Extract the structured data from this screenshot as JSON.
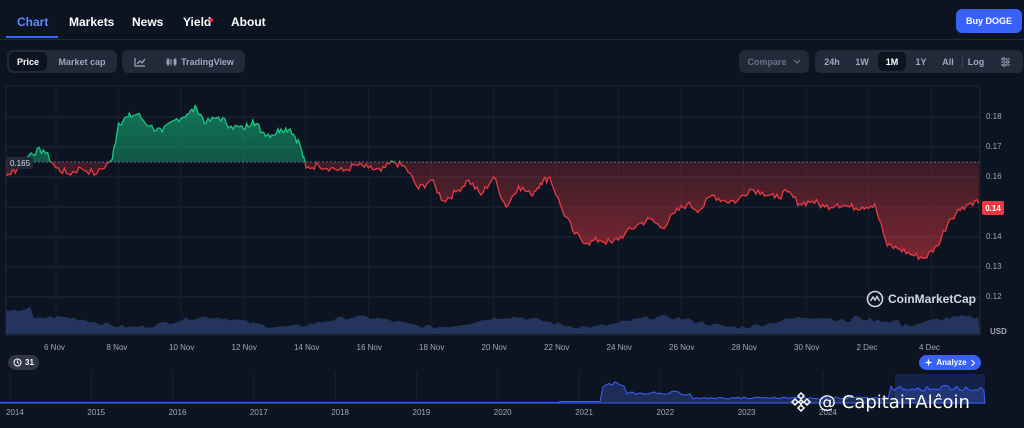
{
  "nav": {
    "tabs": [
      {
        "label": "Chart",
        "active": true
      },
      {
        "label": "Markets"
      },
      {
        "label": "News"
      },
      {
        "label": "Yield"
      },
      {
        "label": "About"
      }
    ],
    "buy_label": "Buy DOGE"
  },
  "toolbar": {
    "view_tabs": [
      "Price",
      "Market cap"
    ],
    "tradingview_label": "TradingView",
    "compare_label": "Compare",
    "ranges": [
      "24h",
      "1W",
      "1M",
      "1Y",
      "All"
    ],
    "selected_range": "1M",
    "log_label": "Log",
    "icons": [
      "line-chart-icon",
      "candles-icon",
      "chevron-down-icon",
      "settings-sliders-icon"
    ]
  },
  "chart_data": {
    "type": "line",
    "currency": "USD",
    "reference_price": "0.165",
    "current_price": "0.14",
    "y_ticks": [
      "0.18",
      "0.17",
      "0.16",
      "0.15",
      "0.14",
      "0.13",
      "0.12"
    ],
    "ylim": [
      0.114,
      0.19
    ],
    "x_ticks": [
      "6 Nov",
      "8 Nov",
      "10 Nov",
      "12 Nov",
      "14 Nov",
      "16 Nov",
      "18 Nov",
      "20 Nov",
      "22 Nov",
      "24 Nov",
      "26 Nov",
      "28 Nov",
      "30 Nov",
      "2 Dec",
      "4 Dec"
    ],
    "colors": {
      "up": "#16c784",
      "down": "#ea3943",
      "volume": "#2a3a66"
    },
    "series": [
      {
        "x_day": [
          4.0,
          4.2,
          4.5,
          4.8,
          5.2,
          5.6,
          6.0,
          6.4,
          6.8,
          7.3,
          7.8,
          8.0,
          8.3,
          8.6,
          9.0,
          9.4,
          9.8,
          10.2,
          10.5,
          10.8,
          11.2,
          11.6,
          12.0,
          12.3,
          12.6,
          12.9,
          13.2,
          13.5,
          13.8,
          14.0,
          14.4,
          14.8,
          15.2,
          15.6,
          16.0,
          16.4,
          16.8,
          17.2,
          17.6,
          18.0,
          18.4,
          18.8,
          19.2,
          19.6,
          20.0,
          20.4,
          20.8,
          21.2,
          21.5,
          21.8,
          22.2,
          22.6,
          23.0,
          23.4,
          23.8,
          24.2,
          24.6,
          25.0,
          25.4,
          25.8,
          26.2,
          26.6,
          27.0,
          27.4,
          27.8,
          28.2,
          28.6,
          29.0,
          29.4,
          29.8,
          30.2,
          30.6,
          31.0,
          31.4,
          31.8,
          32.2,
          32.6,
          33.0,
          33.4,
          33.8,
          34.2,
          34.6,
          35.0,
          35.4,
          35.8
        ],
        "price": [
          0.164,
          0.16,
          0.161,
          0.163,
          0.168,
          0.169,
          0.163,
          0.161,
          0.163,
          0.161,
          0.166,
          0.178,
          0.18,
          0.181,
          0.177,
          0.175,
          0.179,
          0.181,
          0.183,
          0.178,
          0.18,
          0.177,
          0.176,
          0.179,
          0.175,
          0.174,
          0.176,
          0.176,
          0.171,
          0.163,
          0.164,
          0.163,
          0.162,
          0.164,
          0.163,
          0.162,
          0.165,
          0.163,
          0.156,
          0.159,
          0.152,
          0.155,
          0.159,
          0.154,
          0.16,
          0.15,
          0.157,
          0.154,
          0.158,
          0.16,
          0.149,
          0.141,
          0.138,
          0.139,
          0.138,
          0.141,
          0.144,
          0.146,
          0.143,
          0.148,
          0.151,
          0.149,
          0.154,
          0.152,
          0.152,
          0.156,
          0.155,
          0.153,
          0.155,
          0.151,
          0.152,
          0.15,
          0.151,
          0.15,
          0.15,
          0.151,
          0.137,
          0.136,
          0.134,
          0.133,
          0.137,
          0.146,
          0.15,
          0.152,
          0.15
        ]
      }
    ],
    "volume_axis_label": "USD"
  },
  "badges": {
    "counter": "31",
    "analyze": "Analyze"
  },
  "watermark": "CoinMarketCap",
  "navigator": {
    "years": [
      "2014",
      "2015",
      "2016",
      "2017",
      "2018",
      "2019",
      "2020",
      "2021",
      "2022",
      "2023",
      "2024"
    ],
    "caption": "@ CapitaiтAlĉoin"
  }
}
